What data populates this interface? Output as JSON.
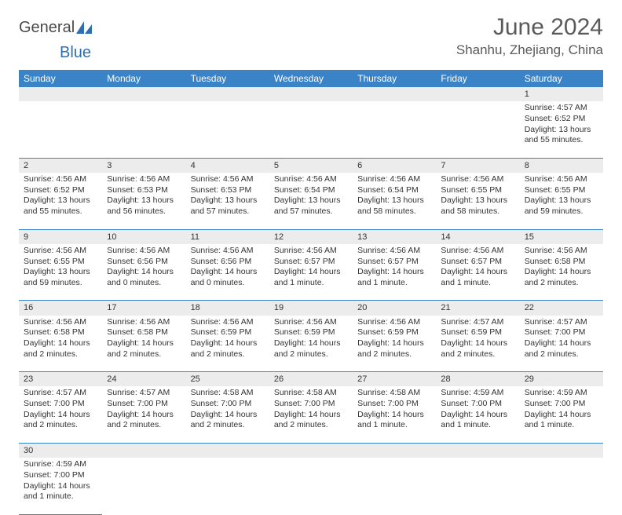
{
  "brand": {
    "part1": "General",
    "part2": "Blue"
  },
  "title": "June 2024",
  "location": "Shanhu, Zhejiang, China",
  "header_bg": "#3a83c6",
  "daynum_bg": "#ececec",
  "border_color": "#3a83c6",
  "weekdays": [
    "Sunday",
    "Monday",
    "Tuesday",
    "Wednesday",
    "Thursday",
    "Friday",
    "Saturday"
  ],
  "weeks": [
    [
      null,
      null,
      null,
      null,
      null,
      null,
      {
        "n": "1",
        "sr": "Sunrise: 4:57 AM",
        "ss": "Sunset: 6:52 PM",
        "dl": "Daylight: 13 hours and 55 minutes."
      }
    ],
    [
      {
        "n": "2",
        "sr": "Sunrise: 4:56 AM",
        "ss": "Sunset: 6:52 PM",
        "dl": "Daylight: 13 hours and 55 minutes."
      },
      {
        "n": "3",
        "sr": "Sunrise: 4:56 AM",
        "ss": "Sunset: 6:53 PM",
        "dl": "Daylight: 13 hours and 56 minutes."
      },
      {
        "n": "4",
        "sr": "Sunrise: 4:56 AM",
        "ss": "Sunset: 6:53 PM",
        "dl": "Daylight: 13 hours and 57 minutes."
      },
      {
        "n": "5",
        "sr": "Sunrise: 4:56 AM",
        "ss": "Sunset: 6:54 PM",
        "dl": "Daylight: 13 hours and 57 minutes."
      },
      {
        "n": "6",
        "sr": "Sunrise: 4:56 AM",
        "ss": "Sunset: 6:54 PM",
        "dl": "Daylight: 13 hours and 58 minutes."
      },
      {
        "n": "7",
        "sr": "Sunrise: 4:56 AM",
        "ss": "Sunset: 6:55 PM",
        "dl": "Daylight: 13 hours and 58 minutes."
      },
      {
        "n": "8",
        "sr": "Sunrise: 4:56 AM",
        "ss": "Sunset: 6:55 PM",
        "dl": "Daylight: 13 hours and 59 minutes."
      }
    ],
    [
      {
        "n": "9",
        "sr": "Sunrise: 4:56 AM",
        "ss": "Sunset: 6:55 PM",
        "dl": "Daylight: 13 hours and 59 minutes."
      },
      {
        "n": "10",
        "sr": "Sunrise: 4:56 AM",
        "ss": "Sunset: 6:56 PM",
        "dl": "Daylight: 14 hours and 0 minutes."
      },
      {
        "n": "11",
        "sr": "Sunrise: 4:56 AM",
        "ss": "Sunset: 6:56 PM",
        "dl": "Daylight: 14 hours and 0 minutes."
      },
      {
        "n": "12",
        "sr": "Sunrise: 4:56 AM",
        "ss": "Sunset: 6:57 PM",
        "dl": "Daylight: 14 hours and 1 minute."
      },
      {
        "n": "13",
        "sr": "Sunrise: 4:56 AM",
        "ss": "Sunset: 6:57 PM",
        "dl": "Daylight: 14 hours and 1 minute."
      },
      {
        "n": "14",
        "sr": "Sunrise: 4:56 AM",
        "ss": "Sunset: 6:57 PM",
        "dl": "Daylight: 14 hours and 1 minute."
      },
      {
        "n": "15",
        "sr": "Sunrise: 4:56 AM",
        "ss": "Sunset: 6:58 PM",
        "dl": "Daylight: 14 hours and 2 minutes."
      }
    ],
    [
      {
        "n": "16",
        "sr": "Sunrise: 4:56 AM",
        "ss": "Sunset: 6:58 PM",
        "dl": "Daylight: 14 hours and 2 minutes."
      },
      {
        "n": "17",
        "sr": "Sunrise: 4:56 AM",
        "ss": "Sunset: 6:58 PM",
        "dl": "Daylight: 14 hours and 2 minutes."
      },
      {
        "n": "18",
        "sr": "Sunrise: 4:56 AM",
        "ss": "Sunset: 6:59 PM",
        "dl": "Daylight: 14 hours and 2 minutes."
      },
      {
        "n": "19",
        "sr": "Sunrise: 4:56 AM",
        "ss": "Sunset: 6:59 PM",
        "dl": "Daylight: 14 hours and 2 minutes."
      },
      {
        "n": "20",
        "sr": "Sunrise: 4:56 AM",
        "ss": "Sunset: 6:59 PM",
        "dl": "Daylight: 14 hours and 2 minutes."
      },
      {
        "n": "21",
        "sr": "Sunrise: 4:57 AM",
        "ss": "Sunset: 6:59 PM",
        "dl": "Daylight: 14 hours and 2 minutes."
      },
      {
        "n": "22",
        "sr": "Sunrise: 4:57 AM",
        "ss": "Sunset: 7:00 PM",
        "dl": "Daylight: 14 hours and 2 minutes."
      }
    ],
    [
      {
        "n": "23",
        "sr": "Sunrise: 4:57 AM",
        "ss": "Sunset: 7:00 PM",
        "dl": "Daylight: 14 hours and 2 minutes."
      },
      {
        "n": "24",
        "sr": "Sunrise: 4:57 AM",
        "ss": "Sunset: 7:00 PM",
        "dl": "Daylight: 14 hours and 2 minutes."
      },
      {
        "n": "25",
        "sr": "Sunrise: 4:58 AM",
        "ss": "Sunset: 7:00 PM",
        "dl": "Daylight: 14 hours and 2 minutes."
      },
      {
        "n": "26",
        "sr": "Sunrise: 4:58 AM",
        "ss": "Sunset: 7:00 PM",
        "dl": "Daylight: 14 hours and 2 minutes."
      },
      {
        "n": "27",
        "sr": "Sunrise: 4:58 AM",
        "ss": "Sunset: 7:00 PM",
        "dl": "Daylight: 14 hours and 1 minute."
      },
      {
        "n": "28",
        "sr": "Sunrise: 4:59 AM",
        "ss": "Sunset: 7:00 PM",
        "dl": "Daylight: 14 hours and 1 minute."
      },
      {
        "n": "29",
        "sr": "Sunrise: 4:59 AM",
        "ss": "Sunset: 7:00 PM",
        "dl": "Daylight: 14 hours and 1 minute."
      }
    ],
    [
      {
        "n": "30",
        "sr": "Sunrise: 4:59 AM",
        "ss": "Sunset: 7:00 PM",
        "dl": "Daylight: 14 hours and 1 minute."
      },
      null,
      null,
      null,
      null,
      null,
      null
    ]
  ]
}
